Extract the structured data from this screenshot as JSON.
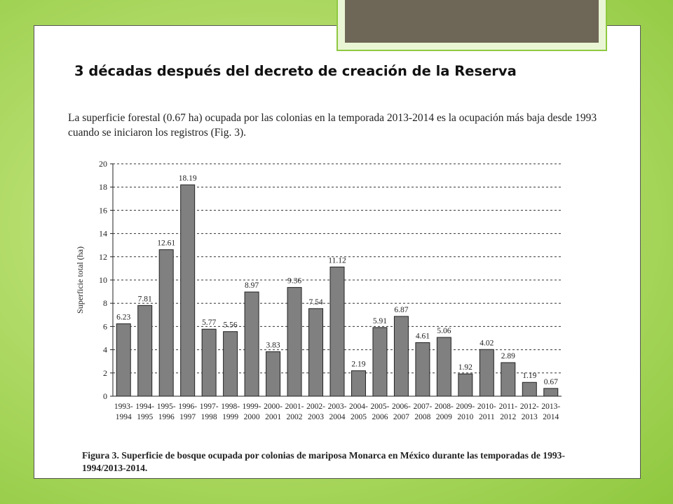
{
  "slide": {
    "title": "3 décadas después del decreto de creación de la Reserva",
    "intro": "La superficie forestal (0.67 ha) ocupada por las colonias en la temporada 2013-2014 es la ocupación más baja desde 1993 cuando se iniciaron los registros (Fig. 3).",
    "caption": "Figura 3. Superficie de bosque ocupada por colonias de mariposa Monarca en México durante las temporadas de 1993-1994/2013-2014."
  },
  "colors": {
    "bar_fill": "#808080",
    "bar_stroke": "#222222",
    "background_green": "#a4d45a",
    "frame_brown": "#6e6656"
  },
  "chart_data": {
    "type": "bar",
    "title": "",
    "xlabel": "",
    "ylabel": "Superficie total (ha)",
    "ylim": [
      0,
      20
    ],
    "yticks": [
      0,
      2,
      4,
      6,
      8,
      10,
      12,
      14,
      16,
      18,
      20
    ],
    "grid": "horizontal-dashed",
    "categories": [
      [
        "1993-",
        "1994"
      ],
      [
        "1994-",
        "1995"
      ],
      [
        "1995-",
        "1996"
      ],
      [
        "1996-",
        "1997"
      ],
      [
        "1997-",
        "1998"
      ],
      [
        "1998-",
        "1999"
      ],
      [
        "1999-",
        "2000"
      ],
      [
        "2000-",
        "2001"
      ],
      [
        "2001-",
        "2002"
      ],
      [
        "2002-",
        "2003"
      ],
      [
        "2003-",
        "2004"
      ],
      [
        "2004-",
        "2005"
      ],
      [
        "2005-",
        "2006"
      ],
      [
        "2006-",
        "2007"
      ],
      [
        "2007-",
        "2008"
      ],
      [
        "2008-",
        "2009"
      ],
      [
        "2009-",
        "2010"
      ],
      [
        "2010-",
        "2011"
      ],
      [
        "2011-",
        "2012"
      ],
      [
        "2012-",
        "2013"
      ],
      [
        "2013-",
        "2014"
      ]
    ],
    "values": [
      6.23,
      7.81,
      12.61,
      18.19,
      5.77,
      5.56,
      8.97,
      3.83,
      9.36,
      7.54,
      11.12,
      2.19,
      5.91,
      6.87,
      4.61,
      5.06,
      1.92,
      4.02,
      2.89,
      1.19,
      0.67
    ],
    "data_labels": [
      "6.23",
      "7.81",
      "12.61",
      "18.19",
      "5.77",
      "5.56",
      "8.97",
      "3.83",
      "9.36",
      "7.54",
      "11.12",
      "2.19",
      "5.91",
      "6.87",
      "4.61",
      "5.06",
      "1.92",
      "4.02",
      "2.89",
      "1.19",
      "0.67"
    ]
  }
}
